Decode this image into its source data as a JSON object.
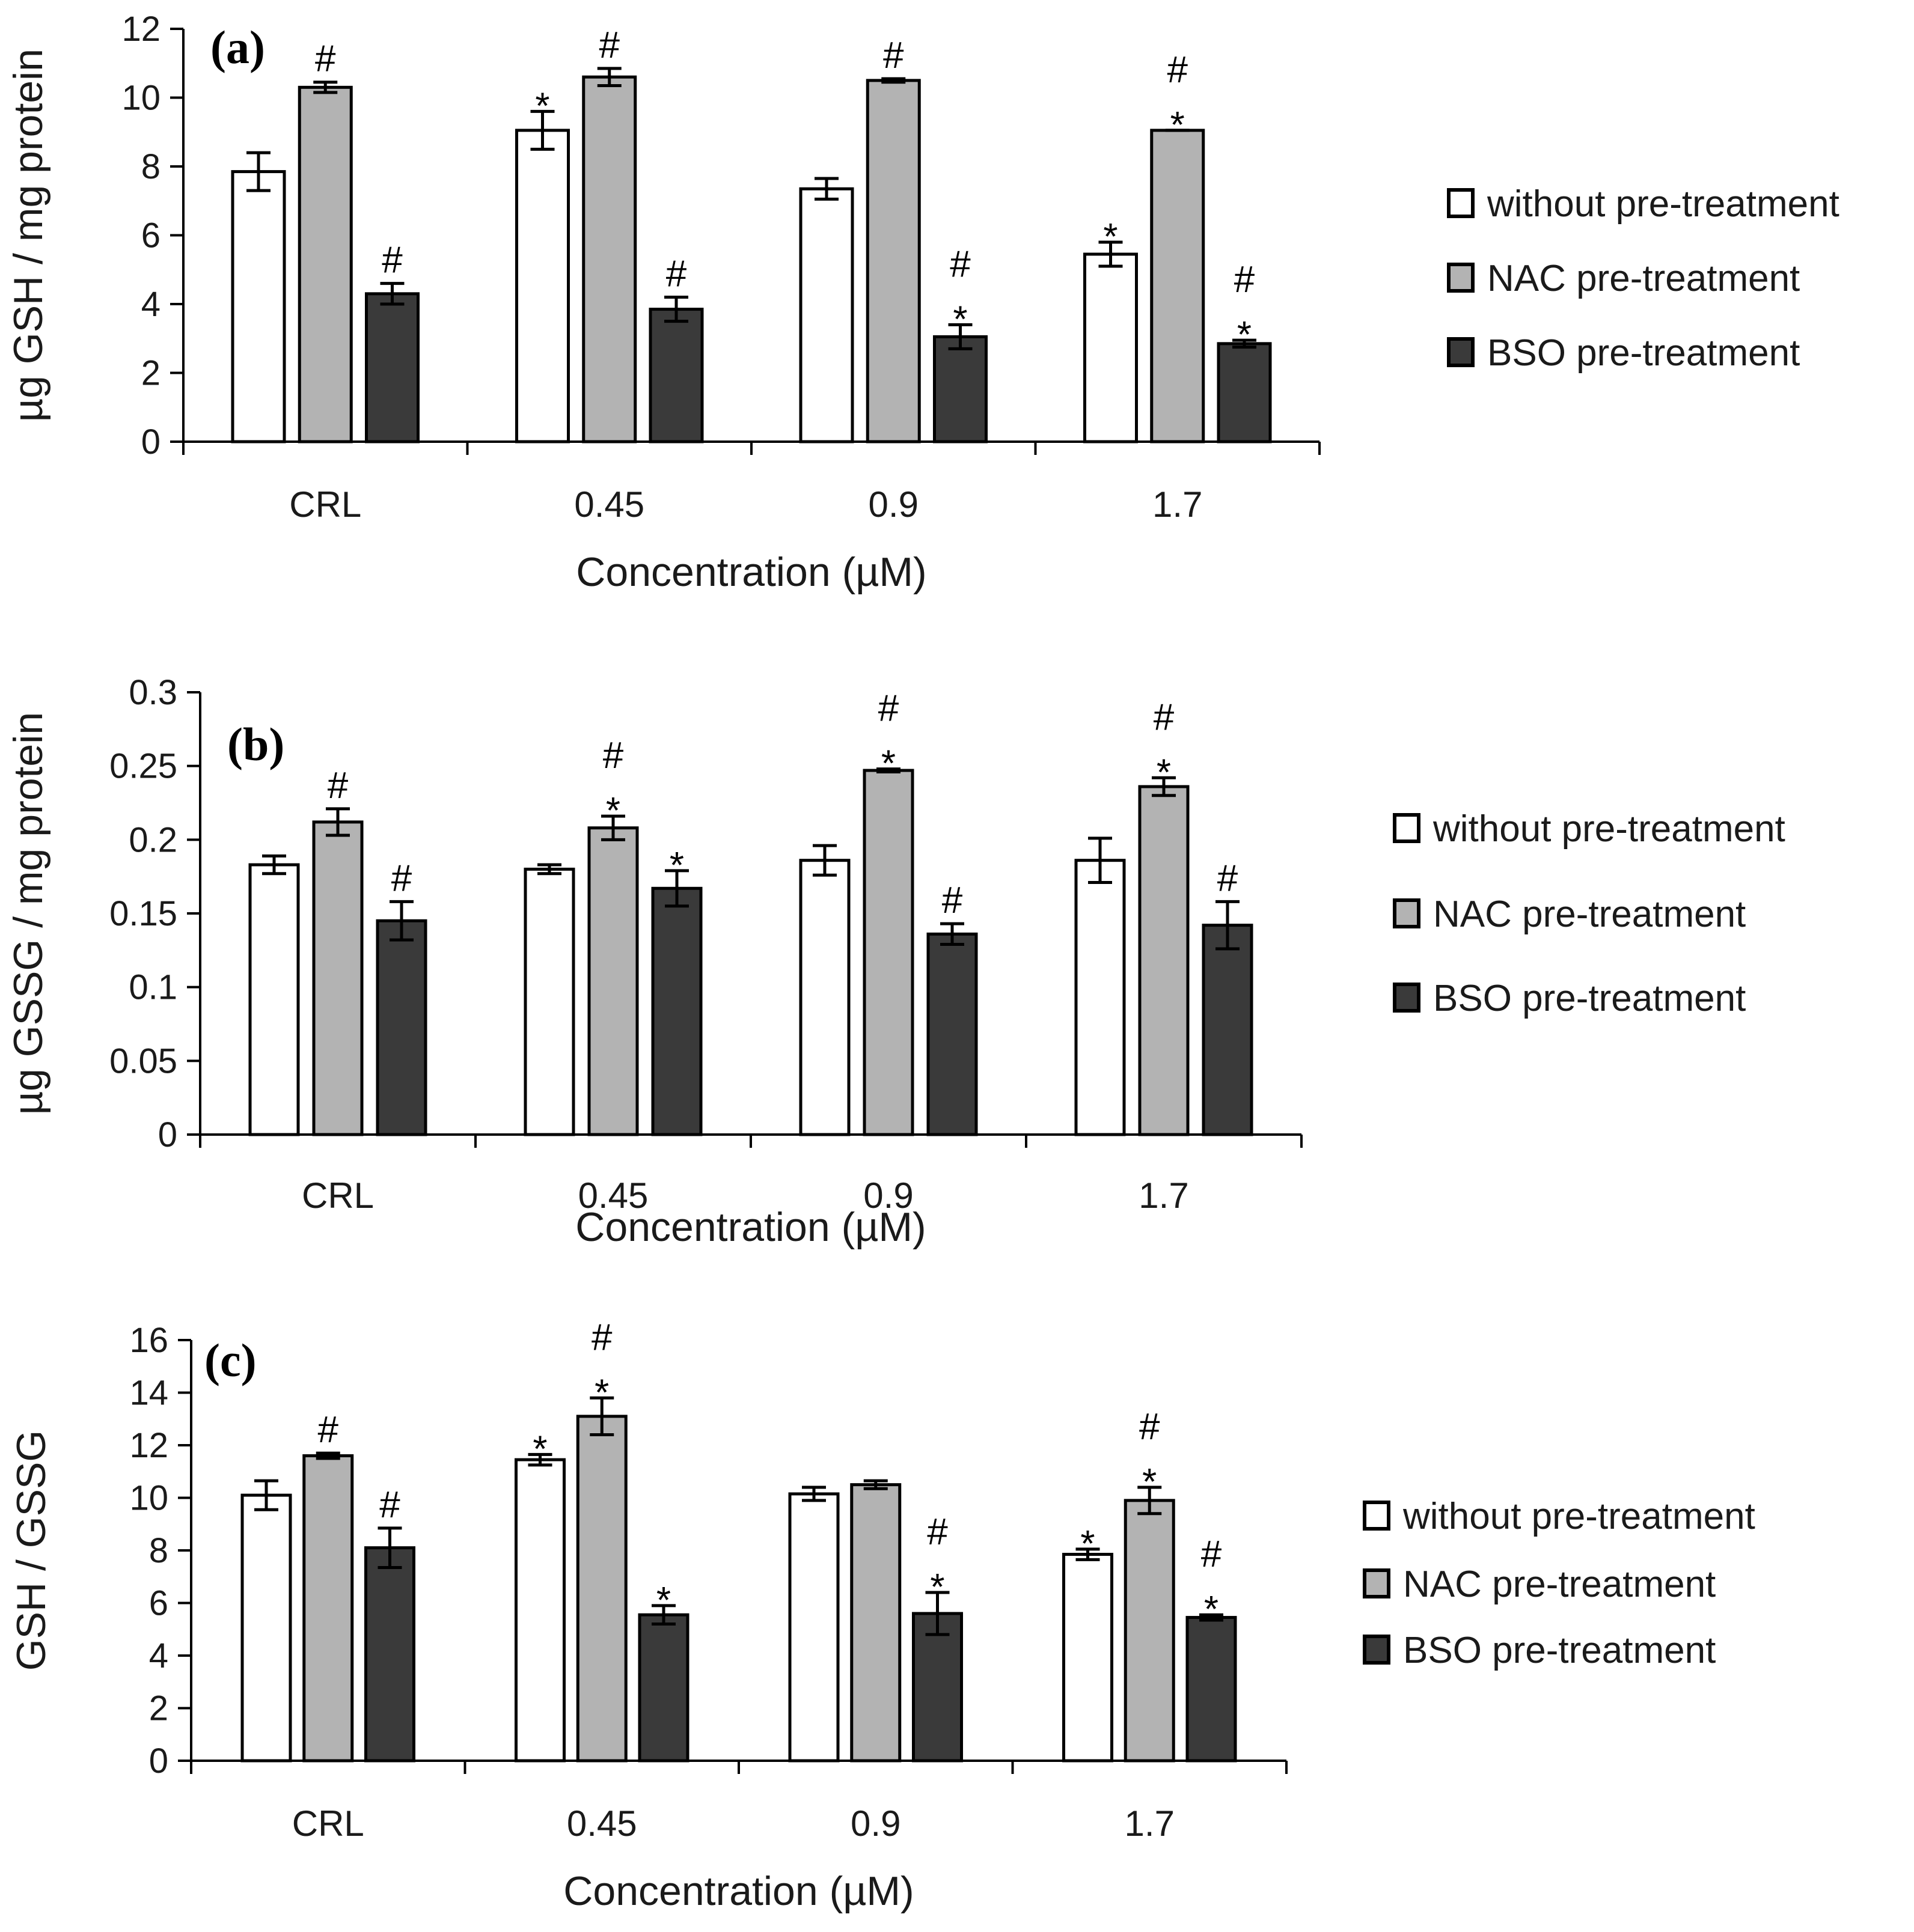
{
  "colors": {
    "without pre-treatment": "#ffffff",
    "NAC pre-treatment": "#b3b3b3",
    "BSO pre-treatment": "#3a3a3a",
    "outline": "#000000"
  },
  "chart_data": [
    {
      "type": "bar",
      "panel_label": "(a)",
      "title": "",
      "xlabel": "Concentration (µM)",
      "ylabel": "µg GSH / mg protein",
      "ylim": [
        0,
        12
      ],
      "yticks": [
        "0",
        "2",
        "4",
        "6",
        "8",
        "10",
        "12"
      ],
      "categories": [
        "CRL",
        "0.45",
        "0.9",
        "1.7"
      ],
      "legend_position": "right",
      "series": [
        {
          "name": "without pre-treatment",
          "values": [
            7.85,
            9.05,
            7.35,
            5.45
          ],
          "errors": [
            0.55,
            0.55,
            0.3,
            0.35
          ],
          "marks": [
            "",
            "*",
            "",
            "*"
          ]
        },
        {
          "name": "NAC pre-treatment",
          "values": [
            10.3,
            10.6,
            10.5,
            9.05
          ],
          "errors": [
            0.15,
            0.25,
            0.05,
            0.0
          ],
          "marks": [
            "#",
            "#",
            "#",
            "*#"
          ]
        },
        {
          "name": "BSO pre-treatment",
          "values": [
            4.3,
            3.85,
            3.05,
            2.85
          ],
          "errors": [
            0.3,
            0.35,
            0.35,
            0.1
          ],
          "marks": [
            "#",
            "#",
            "*#",
            "*#"
          ]
        }
      ]
    },
    {
      "type": "bar",
      "panel_label": "(b)",
      "title": "",
      "xlabel": "Concentration (µM)",
      "ylabel": "µg GSSG / mg protein",
      "ylim": [
        0,
        0.3
      ],
      "yticks": [
        "0",
        "0.05",
        "0.1",
        "0.15",
        "0.2",
        "0.25",
        "0.3"
      ],
      "categories": [
        "CRL",
        "0.45",
        "0.9",
        "1.7"
      ],
      "legend_position": "right",
      "series": [
        {
          "name": "without pre-treatment",
          "values": [
            0.183,
            0.18,
            0.186,
            0.186
          ],
          "errors": [
            0.006,
            0.003,
            0.01,
            0.015
          ],
          "marks": [
            "",
            "",
            "",
            ""
          ]
        },
        {
          "name": "NAC pre-treatment",
          "values": [
            0.212,
            0.208,
            0.247,
            0.236
          ],
          "errors": [
            0.009,
            0.008,
            0.001,
            0.006
          ],
          "marks": [
            "#",
            "*#",
            "*#",
            "*#"
          ]
        },
        {
          "name": "BSO pre-treatment",
          "values": [
            0.145,
            0.167,
            0.136,
            0.142
          ],
          "errors": [
            0.013,
            0.012,
            0.007,
            0.016
          ],
          "marks": [
            "#",
            "*",
            "#",
            "#"
          ]
        }
      ]
    },
    {
      "type": "bar",
      "panel_label": "(c)",
      "title": "",
      "xlabel": "Concentration (µM)",
      "ylabel": "GSH / GSSG",
      "ylim": [
        0,
        16
      ],
      "yticks": [
        "0",
        "2",
        "4",
        "6",
        "8",
        "10",
        "12",
        "14",
        "16"
      ],
      "categories": [
        "CRL",
        "0.45",
        "0.9",
        "1.7"
      ],
      "legend_position": "right",
      "series": [
        {
          "name": "without pre-treatment",
          "values": [
            10.1,
            11.45,
            10.15,
            7.85
          ],
          "errors": [
            0.55,
            0.2,
            0.25,
            0.2
          ],
          "marks": [
            "",
            "*",
            "",
            "*"
          ]
        },
        {
          "name": "NAC pre-treatment",
          "values": [
            11.6,
            13.1,
            10.5,
            9.9
          ],
          "errors": [
            0.1,
            0.7,
            0.15,
            0.5
          ],
          "marks": [
            "#",
            "*#",
            "",
            "*#"
          ]
        },
        {
          "name": "BSO pre-treatment",
          "values": [
            8.1,
            5.55,
            5.6,
            5.45
          ],
          "errors": [
            0.75,
            0.35,
            0.8,
            0.1
          ],
          "marks": [
            "#",
            "*",
            "*#",
            "*#"
          ]
        }
      ]
    }
  ]
}
